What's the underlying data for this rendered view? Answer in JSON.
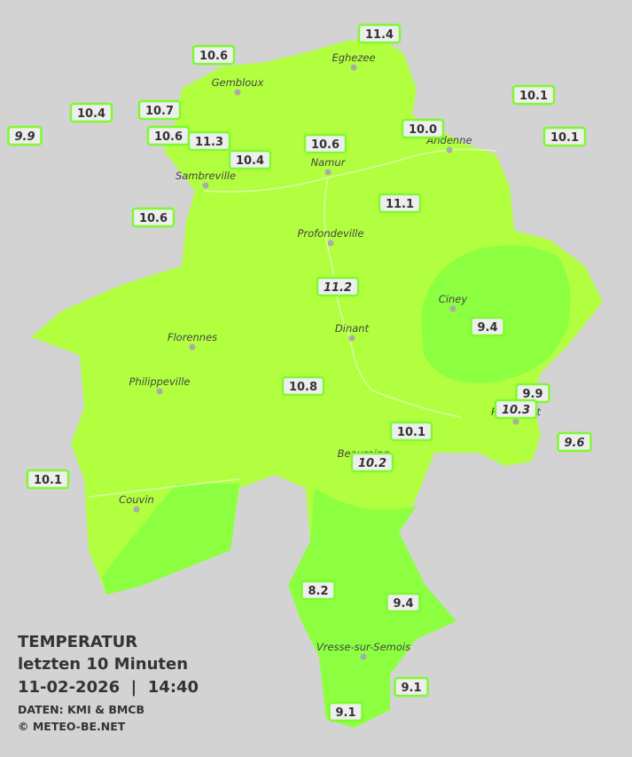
{
  "map": {
    "title": "TEMPERATUR",
    "subtitle": "letzten 10 Minuten",
    "datetime": "11-02-2026  |  14:40",
    "source": "DATEN: KMI & BMCB",
    "copyright": "© METEO-BE.NET",
    "stations": [
      {
        "value": "11.4",
        "italic": false
      },
      {
        "value": "10.6",
        "italic": false
      },
      {
        "value": "10.1",
        "italic": false
      },
      {
        "value": "10.4",
        "italic": false
      },
      {
        "value": "10.7",
        "italic": false
      },
      {
        "value": "10.0",
        "italic": false
      },
      {
        "value": "9.9",
        "italic": true
      },
      {
        "value": "10.6",
        "italic": false
      },
      {
        "value": "11.3",
        "italic": false
      },
      {
        "value": "10.6",
        "italic": false
      },
      {
        "value": "10.1",
        "italic": false
      },
      {
        "value": "10.4",
        "italic": false
      },
      {
        "value": "10.6",
        "italic": false
      },
      {
        "value": "11.1",
        "italic": false
      },
      {
        "value": "11.2",
        "italic": true
      },
      {
        "value": "9.4",
        "italic": false
      },
      {
        "value": "10.8",
        "italic": false
      },
      {
        "value": "9.9",
        "italic": false
      },
      {
        "value": "10.3",
        "italic": true
      },
      {
        "value": "10.1",
        "italic": false
      },
      {
        "value": "9.6",
        "italic": true
      },
      {
        "value": "10.2",
        "italic": true
      },
      {
        "value": "10.1",
        "italic": false
      },
      {
        "value": "8.2",
        "italic": false
      },
      {
        "value": "9.4",
        "italic": false
      },
      {
        "value": "9.1",
        "italic": false
      },
      {
        "value": "9.1",
        "italic": false
      }
    ],
    "cities": [
      "Eghezee",
      "Gembloux",
      "Andenne",
      "Namur",
      "Sambreville",
      "Profondeville",
      "Ciney",
      "Dinant",
      "Florennes",
      "Philippeville",
      "Beauraing",
      "Rochefort",
      "Couvin",
      "Vresse-sur-Semois"
    ]
  }
}
